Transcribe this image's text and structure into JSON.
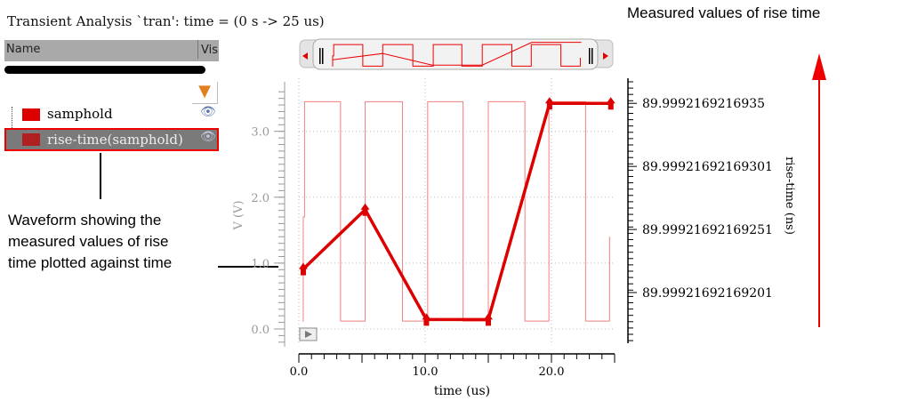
{
  "title": "Transient Analysis `tran': time = (0 s -> 25 us)",
  "browser": {
    "col_name": "Name",
    "col_vis": "Vis",
    "items": [
      {
        "label": "samphold",
        "color": "#dd0000"
      },
      {
        "label": "rise-time(samphold)",
        "color": "#b02020",
        "selected": true
      }
    ]
  },
  "annotations": {
    "waveform_note": [
      "Waveform showing the",
      "measured values of rise",
      "time plotted against time"
    ],
    "measured_note": "Measured values of rise time"
  },
  "icons": {
    "filter": "filter-icon",
    "eye": "eye-icon",
    "play": "play-icon",
    "scroll_left": "arrow-left-icon",
    "scroll_right": "arrow-right-icon"
  },
  "chart_data": {
    "type": "line",
    "xlabel": "time (us)",
    "ylabel": "V (V)",
    "y2label": "rise-time (ns)",
    "xlim": [
      0,
      25
    ],
    "ylim": [
      -0.1,
      3.75
    ],
    "y2lim": [
      89.99921692169144,
      89.99921692169372
    ],
    "xticks": [
      "0.0",
      "10.0",
      "20.0"
    ],
    "xtick_values": [
      0,
      10,
      20
    ],
    "yticks": [
      "0.0",
      "1.0",
      "2.0",
      "3.0"
    ],
    "ytick_values": [
      0,
      1,
      2,
      3
    ],
    "y2ticks": [
      "89.9992169216935",
      "89.99921692169301",
      "89.99921692169251",
      "89.99921692169201"
    ],
    "y2tick_values": [
      89.9992169216935,
      89.999216921693,
      89.99921692169251,
      89.99921692169201
    ],
    "series": [
      {
        "name": "samphold",
        "axis": "left",
        "color": "#f08080",
        "x": [
          0.3,
          0.35,
          0.35,
          0.45,
          0.45,
          3.3,
          3.3,
          5.25,
          5.25,
          8.2,
          8.2,
          10.2,
          10.2,
          13.0,
          13.0,
          15.0,
          15.0,
          17.9,
          17.9,
          19.8,
          19.8,
          22.7,
          22.7,
          24.6,
          24.6
        ],
        "y": [
          0.12,
          0.12,
          1.7,
          1.7,
          3.45,
          3.45,
          0.12,
          0.12,
          3.45,
          3.45,
          0.12,
          0.12,
          3.45,
          3.45,
          0.12,
          0.12,
          3.45,
          3.45,
          0.12,
          0.12,
          3.45,
          3.45,
          0.12,
          0.12,
          1.4
        ]
      },
      {
        "name": "rise-time(samphold)",
        "axis": "right",
        "color": "#dd0000",
        "x": [
          0.35,
          5.25,
          10.1,
          15.0,
          19.85,
          24.7
        ],
        "y": [
          89.9992169216922,
          89.99921692169266,
          89.9992169216918,
          89.9992169216918,
          89.9992169216935,
          89.9992169216935
        ]
      }
    ]
  }
}
